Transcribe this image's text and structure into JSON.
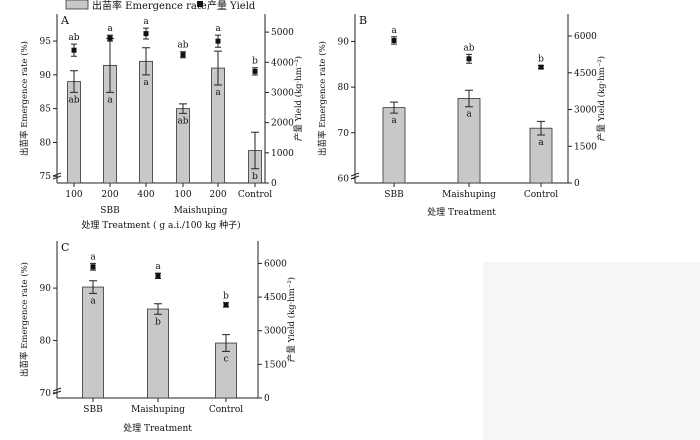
{
  "legend": {
    "bar_label": "出苗率 Emergence rate",
    "point_label": "产量 Yield"
  },
  "colors": {
    "bar": "#c8c8c8",
    "bar_stroke": "#333333",
    "point": "#111111"
  },
  "chart_data": [
    {
      "panel": "A",
      "type": "bar",
      "categories": [
        "100",
        "200",
        "400",
        "100",
        "200",
        "Control"
      ],
      "groups": [
        {
          "label": "SBB",
          "from": 0,
          "to": 2
        },
        {
          "label": "Maishuping",
          "from": 3,
          "to": 4
        }
      ],
      "series": [
        {
          "name": "出苗率 Emergence rate",
          "axis": "left",
          "values": [
            89.0,
            91.4,
            92.0,
            85.0,
            91.0,
            78.8
          ],
          "errors": [
            1.6,
            4.0,
            2.0,
            0.7,
            2.5,
            2.7
          ],
          "letters": [
            "ab",
            "a",
            "a",
            "ab",
            "a",
            "b"
          ]
        },
        {
          "name": "产量 Yield",
          "axis": "right",
          "values": [
            4400,
            4800,
            4950,
            4250,
            4700,
            3700
          ],
          "errors": [
            200,
            100,
            180,
            100,
            200,
            120
          ],
          "letters": [
            "ab",
            "a",
            "a",
            "ab",
            "a",
            "b"
          ]
        }
      ],
      "xlabel": "处理 Treatment ( g a.i./100 kg 种子)",
      "ylabel": "出苗率 Emergence rate (%)",
      "y2label": "产量 Yield (kg·hm⁻²)",
      "ylim": [
        74,
        99
      ],
      "y2lim": [
        0,
        5600
      ],
      "yticks": [
        75,
        80,
        85,
        90,
        95
      ],
      "y2ticks": [
        0,
        1000,
        2000,
        3000,
        4000,
        5000
      ]
    },
    {
      "panel": "B",
      "type": "bar",
      "categories": [
        "SBB",
        "Maishuping",
        "Control"
      ],
      "series": [
        {
          "name": "出苗率 Emergence rate",
          "axis": "left",
          "values": [
            75.5,
            77.5,
            71.0
          ],
          "errors": [
            1.2,
            1.8,
            1.5
          ],
          "letters": [
            "a",
            "a",
            "a"
          ]
        },
        {
          "name": "产量 Yield",
          "axis": "right",
          "values": [
            5820,
            5070,
            4730
          ],
          "errors": [
            150,
            180,
            60
          ],
          "letters": [
            "a",
            "ab",
            "b"
          ]
        }
      ],
      "xlabel": "处理 Treatment",
      "ylabel": "出苗率 Emergence rate (%)",
      "y2label": "产量 Yield (kg·hm⁻²)",
      "ylim": [
        59,
        96
      ],
      "y2lim": [
        0,
        6900
      ],
      "yticks": [
        60,
        70,
        80,
        90
      ],
      "y2ticks": [
        0,
        1500,
        3000,
        4500,
        6000
      ]
    },
    {
      "panel": "C",
      "type": "bar",
      "categories": [
        "SBB",
        "Maishuping",
        "Control"
      ],
      "series": [
        {
          "name": "出苗率 Emergence rate",
          "axis": "left",
          "values": [
            90.2,
            86.0,
            79.5
          ],
          "errors": [
            1.2,
            1.0,
            1.6
          ],
          "letters": [
            "a",
            "b",
            "c"
          ]
        },
        {
          "name": "产量 Yield",
          "axis": "right",
          "values": [
            5850,
            5450,
            4150
          ],
          "errors": [
            150,
            120,
            100
          ],
          "letters": [
            "a",
            "a",
            "b"
          ]
        }
      ],
      "xlabel": "处理 Treatment",
      "ylabel": "出苗率 Emergence rate (%)",
      "y2label": "产量 Yield (kg·hm⁻²)",
      "ylim": [
        69,
        99
      ],
      "y2lim": [
        0,
        7000
      ],
      "yticks": [
        70,
        80,
        90
      ],
      "y2ticks": [
        0,
        1500,
        3000,
        4500,
        6000
      ]
    }
  ]
}
